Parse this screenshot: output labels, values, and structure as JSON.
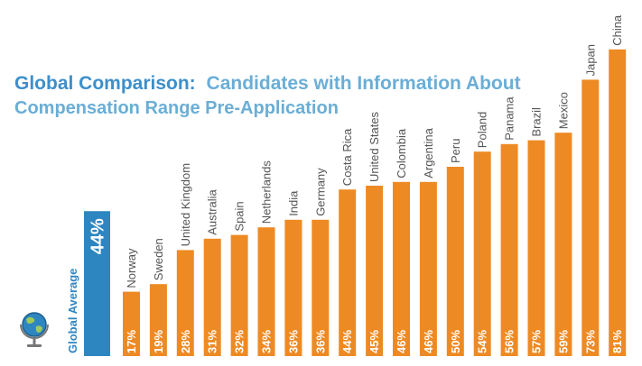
{
  "chart_data": {
    "type": "bar",
    "title_lead": "Global Comparison:",
    "title_rest_line1": "Candidates with Information About",
    "title_line2": "Compensation Range Pre-Application",
    "average": {
      "label": "Global Average",
      "value": 44,
      "value_label": "44%"
    },
    "categories": [
      "Norway",
      "Sweden",
      "United Kingdom",
      "Australia",
      "Spain",
      "Netherlands",
      "India",
      "Germany",
      "Costa Rica",
      "United States",
      "Colombia",
      "Argentina",
      "Peru",
      "Poland",
      "Panama",
      "Brazil",
      "Mexico",
      "Japan",
      "China"
    ],
    "values": [
      17,
      19,
      28,
      31,
      32,
      34,
      36,
      36,
      44,
      45,
      46,
      46,
      50,
      54,
      56,
      57,
      59,
      73,
      81
    ],
    "value_labels": [
      "17%",
      "19%",
      "28%",
      "31%",
      "32%",
      "34%",
      "36%",
      "36%",
      "44%",
      "45%",
      "46%",
      "46%",
      "50%",
      "54%",
      "56%",
      "57%",
      "59%",
      "73%",
      "81%"
    ],
    "ylim": [
      0,
      100
    ],
    "colors": {
      "bar": "#EE8A23",
      "average_bar": "#2E86C1",
      "title_lead": "#3D8FCB",
      "title_rest": "#6AAED6",
      "bar_text": "#ffffff",
      "category_text": "#555555"
    },
    "icon": "globe-icon"
  }
}
